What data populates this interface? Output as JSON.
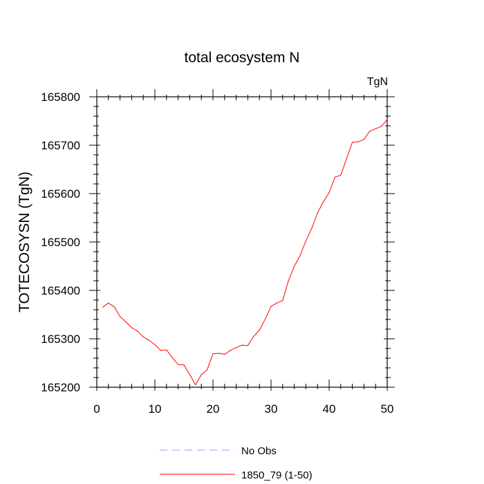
{
  "chart_data": {
    "type": "line",
    "title": "total ecosystem N",
    "units_label": "TgN",
    "xlabel": "",
    "ylabel": "TOTECOSYSN  (TgN)",
    "xlim": [
      0,
      50
    ],
    "ylim": [
      165200,
      165800
    ],
    "x_ticks": [
      0,
      10,
      20,
      30,
      40,
      50
    ],
    "x_tick_labels": [
      "0",
      "10",
      "20",
      "30",
      "40",
      "50"
    ],
    "y_ticks": [
      165200,
      165300,
      165400,
      165500,
      165600,
      165700,
      165800
    ],
    "y_tick_labels": [
      "165200",
      "165300",
      "165400",
      "165500",
      "165600",
      "165700",
      "165800"
    ],
    "grid": false,
    "legend_position": "bottom-center",
    "series": [
      {
        "name": "1850_79 (1-50)",
        "color": "#ff0000",
        "dash": "solid",
        "x": [
          1,
          2,
          3,
          4,
          5,
          6,
          7,
          8,
          9,
          10,
          11,
          12,
          13,
          14,
          15,
          16,
          17,
          18,
          19,
          20,
          21,
          22,
          23,
          24,
          25,
          26,
          27,
          28,
          29,
          30,
          31,
          32,
          33,
          34,
          35,
          36,
          37,
          38,
          39,
          40,
          41,
          42,
          43,
          44,
          45,
          46,
          47,
          48,
          49,
          50
        ],
        "values": [
          165365,
          165374,
          165366,
          165346,
          165335,
          165323,
          165316,
          165304,
          165297,
          165288,
          165276,
          165277,
          165261,
          165247,
          165246,
          165226,
          165205,
          165226,
          165236,
          165269,
          165270,
          165268,
          165276,
          165282,
          165287,
          165286,
          165305,
          165318,
          165341,
          165367,
          165374,
          165379,
          165420,
          165450,
          165472,
          165502,
          165528,
          165560,
          165583,
          165602,
          165634,
          165638,
          165672,
          165706,
          165707,
          165712,
          165729,
          165734,
          165739,
          165753
        ]
      }
    ],
    "legend": [
      {
        "label": "No Obs",
        "color": "#9999ff",
        "dash": "dashed"
      },
      {
        "label": "1850_79 (1-50)",
        "color": "#ff0000",
        "dash": "solid"
      }
    ]
  }
}
